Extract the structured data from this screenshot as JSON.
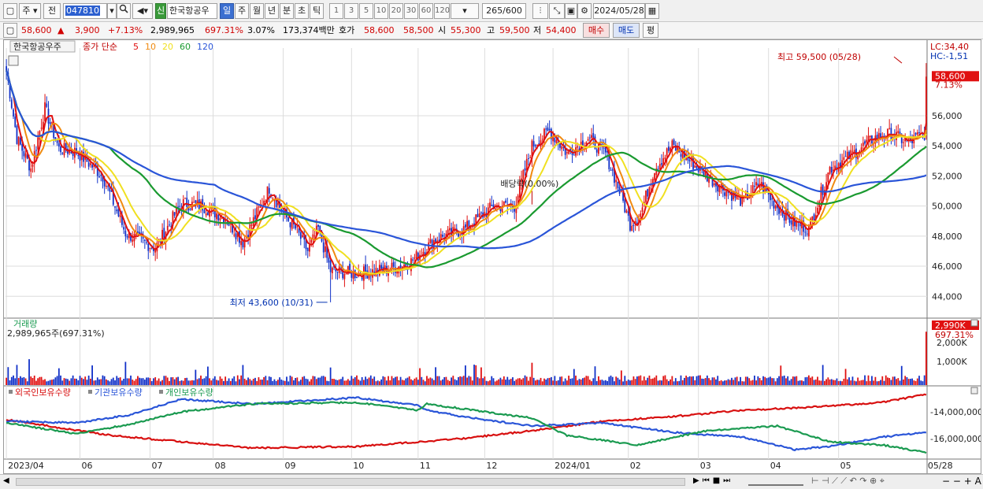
{
  "toolbar": {
    "mode1": "주",
    "mode2": "전",
    "code": "047810",
    "badge": "신",
    "stock_name": "한국항공우",
    "periods": [
      "일",
      "주",
      "월",
      "년",
      "분",
      "초",
      "틱"
    ],
    "intervals": [
      "1",
      "3",
      "5",
      "10",
      "20",
      "30",
      "60",
      "120"
    ],
    "count": "265",
    "count_total": "/600",
    "date": "2024/05/28"
  },
  "quote": {
    "price": "58,600",
    "change": "3,900",
    "change_pct": "+7.13%",
    "volume": "2,989,965",
    "volume_pct": "697.31%",
    "turnover": "3.07%",
    "amount": "173,374백만",
    "ask_label": "호가",
    "ask": "58,600",
    "bid": "58,500",
    "open_label": "시",
    "open": "55,300",
    "high_label": "고",
    "high": "59,500",
    "low_label": "저",
    "low": "54,400",
    "buy_btn": "매수",
    "sell_btn": "매도",
    "eval_btn": "평"
  },
  "chart_data": [
    {
      "type": "candlestick",
      "title": "한국항공우주",
      "legend": {
        "prefix": "종가 단순",
        "ma": [
          {
            "period": "5",
            "color": "#e01010"
          },
          {
            "period": "10",
            "color": "#f08a10"
          },
          {
            "period": "20",
            "color": "#f0e020"
          },
          {
            "period": "60",
            "color": "#1a9a30"
          },
          {
            "period": "120",
            "color": "#2a55d8"
          }
        ]
      },
      "y_ticks": [
        "56,000",
        "54,000",
        "52,000",
        "50,000",
        "48,000",
        "46,000",
        "44,000"
      ],
      "ylim": [
        42600,
        60500
      ],
      "x_labels": [
        "2023/04",
        "06",
        "07",
        "08",
        "09",
        "10",
        "11",
        "12",
        "2024/01",
        "02",
        "03",
        "04",
        "05",
        "05/28"
      ],
      "x_label_pos": [
        0,
        42,
        82,
        118,
        158,
        197,
        235,
        273,
        312,
        355,
        395,
        435,
        475,
        525
      ],
      "ohlc_keypoints": [
        [
          0,
          59000
        ],
        [
          6,
          54500
        ],
        [
          14,
          52500
        ],
        [
          22,
          56500
        ],
        [
          30,
          53800
        ],
        [
          40,
          53600
        ],
        [
          55,
          52000
        ],
        [
          68,
          48200
        ],
        [
          85,
          47200
        ],
        [
          100,
          50200
        ],
        [
          112,
          50000
        ],
        [
          125,
          49200
        ],
        [
          135,
          47600
        ],
        [
          150,
          51200
        ],
        [
          158,
          49500
        ],
        [
          165,
          48500
        ],
        [
          172,
          47000
        ],
        [
          178,
          48500
        ],
        [
          185,
          45700
        ],
        [
          200,
          45500
        ],
        [
          218,
          45800
        ],
        [
          230,
          46200
        ],
        [
          245,
          47800
        ],
        [
          262,
          48500
        ],
        [
          278,
          50000
        ],
        [
          290,
          50000
        ],
        [
          300,
          54000
        ],
        [
          310,
          55000
        ],
        [
          320,
          53500
        ],
        [
          332,
          54500
        ],
        [
          342,
          53500
        ],
        [
          350,
          51000
        ],
        [
          356,
          48800
        ],
        [
          362,
          49500
        ],
        [
          370,
          52500
        ],
        [
          380,
          54000
        ],
        [
          390,
          53000
        ],
        [
          405,
          51500
        ],
        [
          420,
          50300
        ],
        [
          430,
          51500
        ],
        [
          438,
          50200
        ],
        [
          448,
          49000
        ],
        [
          458,
          48500
        ],
        [
          470,
          52500
        ],
        [
          480,
          53200
        ],
        [
          495,
          54500
        ],
        [
          505,
          54800
        ],
        [
          515,
          54200
        ],
        [
          520,
          54600
        ],
        [
          524,
          54800
        ],
        [
          525,
          58600
        ]
      ],
      "markers": [
        {
          "label": "최고 59,500 (05/28)",
          "value": 59500
        },
        {
          "label": "최저 43,600 (10/31)",
          "value": 43600
        },
        {
          "label": "배당락(0.00%)"
        }
      ],
      "right_info": {
        "lc": "LC:34,40",
        "hc": "HC:-1,51",
        "price": "58,600",
        "pct": "7.13%"
      }
    },
    {
      "type": "bar",
      "title": "거래량",
      "current": "2,989,965주(697.31%)",
      "y_ticks": [
        "2,000K",
        "1,000K"
      ],
      "right_badge": "2,990K",
      "right_pct": "697.31%"
    },
    {
      "type": "line",
      "series": [
        {
          "name": "외국인보유수량",
          "color": "#d81010"
        },
        {
          "name": "기관보유수량",
          "color": "#2a55d8"
        },
        {
          "name": "개인보유수량",
          "color": "#1a9a50"
        }
      ],
      "y_ticks": [
        "-14,000,000",
        "-16,000,000"
      ]
    }
  ],
  "colors": {
    "up": "#e01010",
    "down": "#1030c8",
    "frame": "#9a9a9a",
    "grid": "#dcdcdc"
  }
}
